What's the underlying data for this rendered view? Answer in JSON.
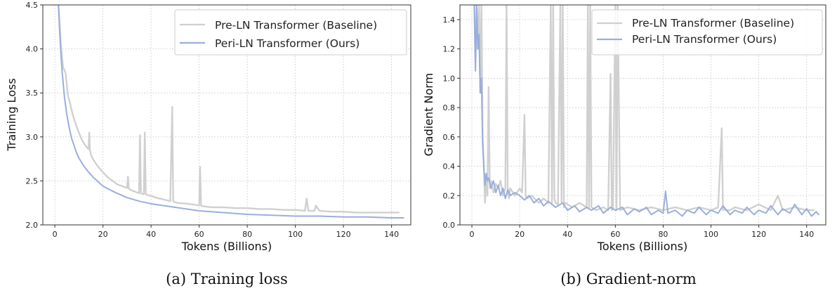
{
  "colors": {
    "baseline": "#d0d0d0",
    "ours": "#9aaedd"
  },
  "chart_data": [
    {
      "type": "line",
      "caption": "(a) Training loss",
      "xlabel": "Tokens (Billions)",
      "ylabel": "Training Loss",
      "xlim": [
        -5,
        148
      ],
      "ylim": [
        2.0,
        4.5
      ],
      "xticks": [
        0,
        20,
        40,
        60,
        80,
        100,
        120,
        140
      ],
      "yticks": [
        2.0,
        2.5,
        3.0,
        3.5,
        4.0,
        4.5
      ],
      "ytick_labels": [
        "2.0",
        "2.5",
        "3.0",
        "3.5",
        "4.0",
        "4.5"
      ],
      "grid": true,
      "legend": "top-right",
      "series": [
        {
          "name": "Pre-LN Transformer (Baseline)",
          "color": "#d0d0d0",
          "x": [
            1.5,
            2,
            2.5,
            3,
            3.5,
            4,
            4.5,
            5,
            5.5,
            6,
            7,
            8,
            9,
            10,
            11,
            12,
            13,
            14,
            14.3,
            14.6,
            15,
            16,
            18,
            20,
            22,
            24,
            26,
            28,
            30,
            30.4,
            30.8,
            32,
            34,
            35,
            35.4,
            35.8,
            36.5,
            37,
            37.4,
            37.8,
            38.5,
            40,
            42,
            45,
            48,
            48.8,
            49.2,
            49.6,
            51,
            55,
            58,
            60,
            60.4,
            60.8,
            62,
            65,
            70,
            75,
            80,
            85,
            90,
            95,
            100,
            104,
            104.7,
            105.4,
            107,
            108,
            108.5,
            110,
            115,
            120,
            125,
            130,
            135,
            140,
            143
          ],
          "y": [
            4.5,
            4.3,
            4.05,
            3.9,
            3.78,
            3.76,
            3.72,
            3.58,
            3.46,
            3.42,
            3.3,
            3.2,
            3.12,
            3.05,
            2.98,
            2.93,
            2.89,
            2.86,
            3.05,
            2.85,
            2.8,
            2.74,
            2.66,
            2.6,
            2.54,
            2.5,
            2.46,
            2.44,
            2.42,
            2.55,
            2.41,
            2.39,
            2.37,
            2.36,
            3.02,
            2.36,
            2.35,
            2.35,
            3.05,
            2.35,
            2.34,
            2.33,
            2.31,
            2.29,
            2.27,
            3.34,
            2.27,
            2.26,
            2.25,
            2.24,
            2.23,
            2.22,
            2.66,
            2.22,
            2.21,
            2.2,
            2.2,
            2.19,
            2.19,
            2.18,
            2.18,
            2.17,
            2.17,
            2.16,
            2.3,
            2.16,
            2.16,
            2.16,
            2.22,
            2.16,
            2.15,
            2.15,
            2.14,
            2.14,
            2.14,
            2.14,
            2.14
          ]
        },
        {
          "name": "Peri-LN Transformer (Ours)",
          "color": "#9aaedd",
          "x": [
            1.5,
            2,
            2.5,
            3,
            3.5,
            4,
            4.5,
            5,
            6,
            7,
            8,
            9,
            10,
            12,
            14,
            16,
            18,
            20,
            25,
            30,
            35,
            40,
            45,
            50,
            55,
            60,
            70,
            80,
            90,
            100,
            110,
            120,
            130,
            140,
            145
          ],
          "y": [
            4.5,
            4.2,
            3.95,
            3.75,
            3.6,
            3.45,
            3.35,
            3.25,
            3.1,
            2.98,
            2.9,
            2.82,
            2.76,
            2.67,
            2.6,
            2.54,
            2.49,
            2.44,
            2.37,
            2.31,
            2.27,
            2.24,
            2.22,
            2.2,
            2.18,
            2.16,
            2.14,
            2.12,
            2.11,
            2.1,
            2.1,
            2.09,
            2.09,
            2.08,
            2.08
          ]
        }
      ]
    },
    {
      "type": "line",
      "caption": "(b) Gradient-norm",
      "xlabel": "Tokens (Billions)",
      "ylabel": "Gradient Norm",
      "xlim": [
        -5,
        148
      ],
      "ylim": [
        0.0,
        1.5
      ],
      "xticks": [
        0,
        20,
        40,
        60,
        80,
        100,
        120,
        140
      ],
      "yticks": [
        0.0,
        0.2,
        0.4,
        0.6,
        0.8,
        1.0,
        1.2,
        1.4
      ],
      "ytick_labels": [
        "0.0",
        "0.2",
        "0.4",
        "0.6",
        "0.8",
        "1.0",
        "1.2",
        "1.4"
      ],
      "grid": true,
      "legend": "top-right",
      "series": [
        {
          "name": "Pre-LN Transformer (Baseline)",
          "color": "#d0d0d0",
          "x": [
            1,
            1.5,
            2,
            2.5,
            3,
            3.5,
            4,
            4.5,
            5,
            5.5,
            6,
            6.5,
            7,
            7.5,
            8,
            9,
            10,
            11,
            12,
            13,
            14,
            14.5,
            15,
            15.5,
            16,
            18,
            20,
            21,
            22,
            22.5,
            23,
            25,
            28,
            30,
            32,
            33,
            33.5,
            34,
            34.5,
            35,
            36,
            37,
            37.5,
            38,
            38.5,
            39,
            42,
            45,
            48,
            48.5,
            49,
            49.5,
            50,
            52,
            55,
            57,
            58,
            58.5,
            59,
            60,
            60.5,
            61,
            62,
            65,
            70,
            75,
            80,
            85,
            90,
            95,
            100,
            103,
            104.5,
            105,
            105.5,
            106,
            108,
            110,
            115,
            120,
            125,
            128,
            130,
            135,
            140,
            143
          ],
          "y": [
            1.5,
            1.1,
            1.5,
            1.2,
            1.5,
            0.9,
            1.5,
            0.6,
            0.4,
            0.15,
            0.35,
            0.2,
            0.94,
            0.25,
            0.3,
            0.22,
            0.28,
            0.25,
            0.3,
            0.2,
            0.25,
            1.5,
            0.22,
            0.18,
            0.25,
            0.2,
            0.25,
            0.22,
            0.75,
            0.2,
            0.18,
            0.2,
            0.15,
            0.18,
            0.15,
            1.5,
            0.15,
            1.5,
            0.18,
            0.15,
            0.14,
            1.5,
            0.15,
            1.5,
            0.12,
            0.15,
            0.12,
            0.15,
            0.12,
            1.5,
            0.12,
            1.5,
            0.12,
            0.1,
            0.12,
            0.1,
            1.03,
            0.1,
            0.12,
            1.5,
            0.1,
            1.5,
            0.1,
            0.12,
            0.1,
            0.12,
            0.1,
            0.12,
            0.1,
            0.12,
            0.1,
            0.12,
            0.66,
            0.1,
            0.12,
            0.1,
            0.1,
            0.12,
            0.1,
            0.14,
            0.1,
            0.2,
            0.1,
            0.12,
            0.1,
            0.1
          ]
        },
        {
          "name": "Peri-LN Transformer (Ours)",
          "color": "#9aaedd",
          "x": [
            1,
            1.5,
            2,
            2.5,
            3,
            3.5,
            4,
            4.5,
            5,
            5.5,
            6,
            6.5,
            7,
            8,
            9,
            10,
            11,
            12,
            13,
            14,
            15,
            16,
            18,
            20,
            22,
            24,
            26,
            28,
            30,
            32,
            35,
            38,
            40,
            43,
            45,
            48,
            50,
            53,
            55,
            58,
            60,
            63,
            65,
            68,
            70,
            73,
            75,
            78,
            80,
            81,
            82,
            85,
            88,
            90,
            93,
            95,
            98,
            100,
            103,
            105,
            108,
            110,
            113,
            115,
            118,
            120,
            123,
            125,
            128,
            130,
            133,
            135,
            138,
            140,
            142,
            144,
            145
          ],
          "y": [
            1.5,
            1.05,
            1.5,
            1.2,
            1.3,
            0.9,
            1.0,
            0.55,
            0.4,
            0.27,
            0.35,
            0.3,
            0.32,
            0.25,
            0.3,
            0.22,
            0.27,
            0.2,
            0.25,
            0.18,
            0.24,
            0.2,
            0.22,
            0.2,
            0.17,
            0.2,
            0.15,
            0.18,
            0.13,
            0.16,
            0.12,
            0.15,
            0.1,
            0.13,
            0.09,
            0.12,
            0.1,
            0.13,
            0.08,
            0.12,
            0.1,
            0.12,
            0.07,
            0.11,
            0.09,
            0.12,
            0.07,
            0.1,
            0.08,
            0.23,
            0.08,
            0.1,
            0.06,
            0.1,
            0.08,
            0.12,
            0.07,
            0.1,
            0.08,
            0.13,
            0.07,
            0.1,
            0.08,
            0.12,
            0.07,
            0.1,
            0.08,
            0.13,
            0.07,
            0.11,
            0.08,
            0.14,
            0.07,
            0.11,
            0.06,
            0.09,
            0.07
          ]
        }
      ]
    }
  ]
}
